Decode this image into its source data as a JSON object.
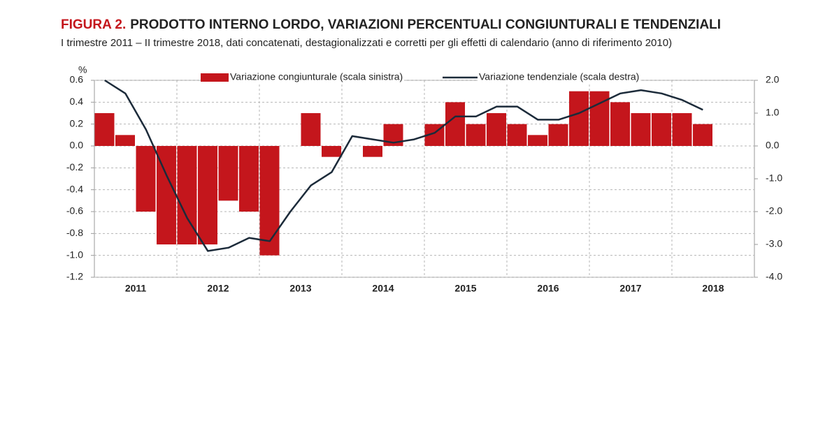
{
  "chart_data": {
    "type": "bar",
    "title_label": "FIGURA 2.",
    "title": "PRODOTTO INTERNO LORDO, VARIAZIONI PERCENTUALI CONGIUNTURALI E TENDENZIALI",
    "subtitle": "I trimestre 2011 – II trimestre 2018, dati concatenati, destagionalizzati e corretti per gli effetti di calendario (anno di riferimento 2010)",
    "y_unit": "%",
    "year_labels": [
      "2011",
      "2012",
      "2013",
      "2014",
      "2015",
      "2016",
      "2017",
      "2018"
    ],
    "categories": [
      null,
      null,
      null,
      null,
      null,
      null,
      null,
      null,
      null,
      null,
      null,
      null,
      null,
      null,
      null,
      null,
      null,
      null,
      null,
      null,
      null,
      null,
      null,
      null,
      null,
      null,
      null,
      null,
      null,
      null
    ],
    "series": [
      {
        "name": "Variazione congiunturale (scala sinistra)",
        "type": "bar",
        "axis": "y",
        "color": "#c4161c",
        "values": [
          0.3,
          0.1,
          -0.6,
          -0.9,
          -0.9,
          -0.9,
          -0.5,
          -0.6,
          -1.0,
          0.0,
          0.3,
          -0.1,
          0.0,
          -0.1,
          0.2,
          0.0,
          0.2,
          0.4,
          0.2,
          0.3,
          0.2,
          0.1,
          0.2,
          0.5,
          0.5,
          0.4,
          0.3,
          0.3,
          0.3,
          0.2
        ]
      },
      {
        "name": "Variazione tendenziale (scala destra)",
        "type": "line",
        "axis": "y2",
        "color": "#1c2b3a",
        "values": [
          2.0,
          1.6,
          0.5,
          -0.9,
          -2.2,
          -3.2,
          -3.1,
          -2.8,
          -2.9,
          -2.0,
          -1.2,
          -0.8,
          0.3,
          0.2,
          0.1,
          0.2,
          0.4,
          0.9,
          0.9,
          1.2,
          1.2,
          0.8,
          0.8,
          1.0,
          1.3,
          1.6,
          1.7,
          1.6,
          1.4,
          1.1
        ]
      }
    ],
    "ylim": [
      -1.2,
      0.6
    ],
    "yticks": [
      0.6,
      0.4,
      0.2,
      {
        "value": 0,
        "label": "0.0"
      },
      -0.2,
      -0.4,
      -0.6,
      -0.8,
      {
        "value": -1,
        "label": "-1.0"
      },
      -1.2
    ],
    "y2lim": [
      -4,
      2
    ],
    "y2ticks": [
      {
        "value": 2,
        "label": "2.0"
      },
      {
        "value": 1,
        "label": "1.0"
      },
      {
        "value": 0,
        "label": "0.0"
      },
      {
        "value": -1,
        "label": "-1.0"
      },
      {
        "value": -2,
        "label": "-2.0"
      },
      {
        "value": -3,
        "label": "-3.0"
      },
      {
        "value": -4,
        "label": "-4.0"
      }
    ],
    "grid": true,
    "legend": "top"
  }
}
